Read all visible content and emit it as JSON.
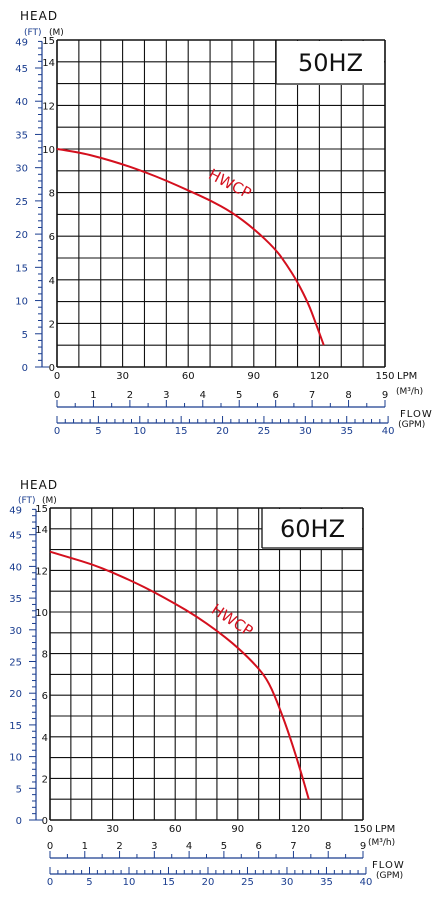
{
  "chart_data": [
    {
      "type": "line",
      "title": "HEAD",
      "freq_label": "50HZ",
      "curve_label": "HWCP",
      "unit_ft": "(FT)",
      "unit_m": "(M)",
      "lpm_label": "LPM",
      "m3h_label": "(M³/h)",
      "flow_label": "FLOW",
      "gpm_label": "(GPM)",
      "xlim": [
        0,
        150
      ],
      "ylim": [
        0,
        15
      ],
      "x_ticks_lpm": [
        "0",
        "30",
        "60",
        "90",
        "120",
        "150"
      ],
      "y_ticks_m": [
        "0",
        "2",
        "4",
        "6",
        "8",
        "10",
        "12",
        "14",
        "15"
      ],
      "y_ticks_ft": [
        "0",
        "5",
        "10",
        "15",
        "20",
        "25",
        "30",
        "35",
        "40",
        "45",
        "49"
      ],
      "x_ticks_m3h": [
        "0",
        "1",
        "2",
        "3",
        "4",
        "5",
        "6",
        "7",
        "8",
        "9"
      ],
      "x_ticks_gpm": [
        "0",
        "5",
        "10",
        "15",
        "20",
        "25",
        "30",
        "35",
        "40"
      ],
      "series": [
        {
          "x": [
            0,
            10,
            20,
            30,
            40,
            50,
            60,
            70,
            80,
            90,
            100,
            105,
            110,
            115,
            118,
            122
          ],
          "y": [
            10.0,
            9.85,
            9.6,
            9.3,
            8.95,
            8.55,
            8.1,
            7.65,
            7.1,
            6.35,
            5.4,
            4.7,
            3.9,
            2.9,
            2.1,
            1.0
          ]
        }
      ]
    },
    {
      "type": "line",
      "title": "HEAD",
      "freq_label": "60HZ",
      "curve_label": "HWCP",
      "unit_ft": "(FT)",
      "unit_m": "(M)",
      "lpm_label": "LPM",
      "m3h_label": "(M³/h)",
      "flow_label": "FLOW",
      "gpm_label": "(GPM)",
      "xlim": [
        0,
        150
      ],
      "ylim": [
        0,
        15
      ],
      "x_ticks_lpm": [
        "0",
        "30",
        "60",
        "90",
        "120",
        "150"
      ],
      "y_ticks_m": [
        "0",
        "2",
        "4",
        "6",
        "8",
        "10",
        "12",
        "14",
        "15"
      ],
      "y_ticks_ft": [
        "0",
        "5",
        "10",
        "15",
        "20",
        "25",
        "30",
        "35",
        "40",
        "45",
        "49"
      ],
      "x_ticks_m3h": [
        "0",
        "1",
        "2",
        "3",
        "4",
        "5",
        "6",
        "7",
        "8",
        "9"
      ],
      "x_ticks_gpm": [
        "0",
        "5",
        "10",
        "15",
        "20",
        "25",
        "30",
        "35",
        "40"
      ],
      "series": [
        {
          "x": [
            0,
            10,
            20,
            30,
            40,
            50,
            60,
            70,
            80,
            90,
            100,
            105,
            110,
            115,
            120,
            124
          ],
          "y": [
            12.9,
            12.6,
            12.3,
            11.9,
            11.45,
            10.95,
            10.4,
            9.8,
            9.1,
            8.3,
            7.3,
            6.6,
            5.4,
            4.0,
            2.4,
            1.0
          ]
        }
      ]
    }
  ],
  "colors": {
    "curve": "#d4101e",
    "axis_blue": "#1a3d8f",
    "grid": "#111111"
  }
}
